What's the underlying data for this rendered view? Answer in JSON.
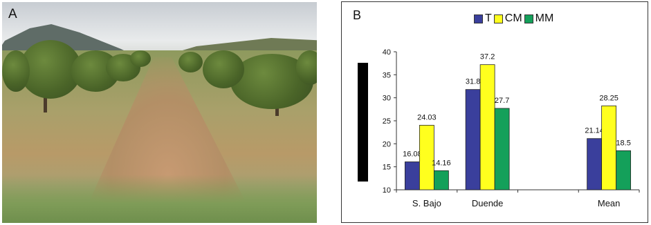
{
  "panel_a": {
    "label": "A"
  },
  "panel_b": {
    "label": "B"
  },
  "colors": {
    "T": "#3a3f9c",
    "CM": "#ffff1e",
    "MM": "#14a05a"
  },
  "chart_data": {
    "type": "bar",
    "categories": [
      "S. Bajo",
      "Duende",
      "",
      "Mean"
    ],
    "series": [
      {
        "name": "T",
        "values": [
          16.08,
          31.8,
          null,
          21.14
        ],
        "labels": [
          "16.08",
          "31.8",
          "",
          "21.14"
        ]
      },
      {
        "name": "CM",
        "values": [
          24.03,
          37.2,
          null,
          28.25
        ],
        "labels": [
          "24.03",
          "37.2",
          "",
          "28.25"
        ]
      },
      {
        "name": "MM",
        "values": [
          14.16,
          27.7,
          null,
          18.5
        ],
        "labels": [
          "14.16",
          "27.7",
          "",
          "18.5"
        ]
      }
    ],
    "ylim": [
      10,
      40
    ],
    "yticks": [
      "10",
      "15",
      "20",
      "25",
      "30",
      "35",
      "40"
    ],
    "legend_position": "top",
    "grid": false
  }
}
